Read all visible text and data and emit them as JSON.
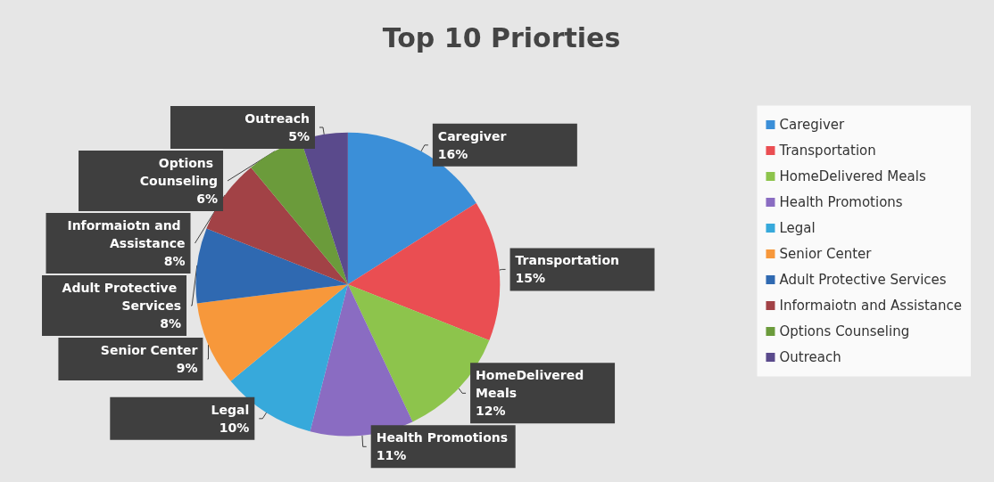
{
  "chart_data": {
    "type": "pie",
    "title": "Top 10 Priorties",
    "categories": [
      "Caregiver",
      "Transportation",
      "HomeDelivered Meals",
      "Health Promotions",
      "Legal",
      "Senior Center",
      "Adult Protective Services",
      "Informaiotn and Assistance",
      "Options Counseling",
      "Outreach"
    ],
    "values": [
      16,
      15,
      12,
      11,
      10,
      9,
      8,
      8,
      6,
      5
    ],
    "value_labels": [
      "16%",
      "15%",
      "12%",
      "11%",
      "10%",
      "9%",
      "8%",
      "8%",
      "6%",
      "5%"
    ],
    "colors": [
      "#3b8fd8",
      "#ea4e52",
      "#8dc44c",
      "#8a6cc2",
      "#37a9db",
      "#f7983b",
      "#2f69b1",
      "#a24246",
      "#6b9b3b",
      "#5a4a8c"
    ],
    "legend": "right"
  }
}
